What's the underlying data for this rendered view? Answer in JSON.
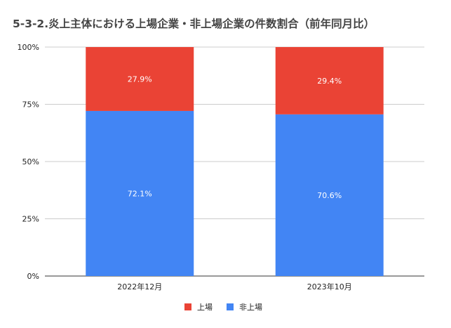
{
  "chart_data": {
    "type": "bar",
    "stacked": true,
    "title": "5-3-2.炎上主体における上場企業・非上場企業の件数割合（前年同月比）",
    "xlabel": "",
    "ylabel": "",
    "ylim": [
      0,
      100
    ],
    "yticks": [
      "0%",
      "25%",
      "50%",
      "75%",
      "100%"
    ],
    "categories": [
      "2022年12月",
      "2023年10月"
    ],
    "series": [
      {
        "name": "非上場",
        "values": [
          72.1,
          70.6
        ],
        "labels": [
          "72.1%",
          "70.6%"
        ],
        "color": "#4285f4"
      },
      {
        "name": "上場",
        "values": [
          27.9,
          29.4
        ],
        "labels": [
          "27.9%",
          "29.4%"
        ],
        "color": "#ea4335"
      }
    ],
    "legend_order": [
      "上場",
      "非上場"
    ],
    "legend_position": "bottom",
    "grid": true
  }
}
